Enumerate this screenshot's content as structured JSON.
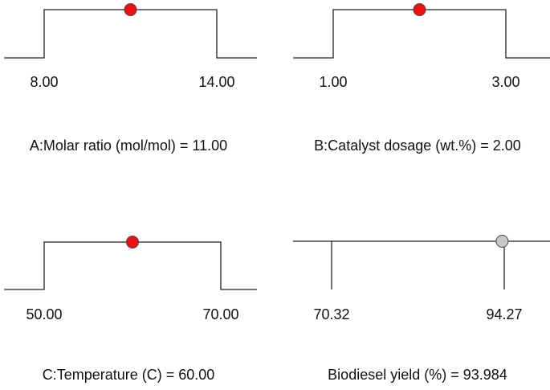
{
  "panels": [
    {
      "type": "factor",
      "name": "A:Molar ratio (mol/mol) =",
      "low": {
        "value": 8,
        "label": "8.00"
      },
      "high": {
        "value": 14,
        "label": "14.00"
      },
      "setting": {
        "value": 11,
        "label": "11.00"
      },
      "color": "#ee1111"
    },
    {
      "type": "factor",
      "name": "B:Catalyst dosage (wt.%) =",
      "low": {
        "value": 1,
        "label": "1.00"
      },
      "high": {
        "value": 3,
        "label": "3.00"
      },
      "setting": {
        "value": 2,
        "label": "2.00"
      },
      "color": "#ee1111"
    },
    {
      "type": "factor",
      "name": "C:Temperature (C) =",
      "low": {
        "value": 50,
        "label": "50.00"
      },
      "high": {
        "value": 70,
        "label": "70.00"
      },
      "setting": {
        "value": 60,
        "label": "60.00"
      },
      "color": "#ee1111"
    },
    {
      "type": "response",
      "name": "Biodiesel yield (%) =",
      "low": {
        "value": 70.32,
        "label": "70.32"
      },
      "high": {
        "value": 94.27,
        "label": "94.27"
      },
      "setting": {
        "value": 93.984,
        "label": "93.984"
      },
      "color": "#c8c8c8"
    }
  ]
}
